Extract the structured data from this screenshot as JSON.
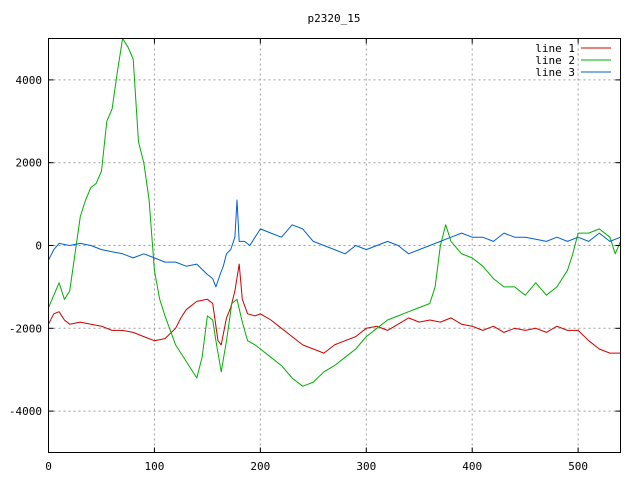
{
  "chart_data": {
    "type": "line",
    "title": "p2320_15",
    "xlabel": "",
    "ylabel": "",
    "xlim": [
      0,
      540
    ],
    "ylim": [
      -5000,
      5000
    ],
    "x_ticks": [
      0,
      100,
      200,
      300,
      400,
      500
    ],
    "y_ticks": [
      -4000,
      -2000,
      0,
      2000,
      4000
    ],
    "grid": true,
    "legend_position": "top-right",
    "series": [
      {
        "name": "line 1",
        "color": "#d00000",
        "points": [
          [
            0,
            -1900
          ],
          [
            5,
            -1650
          ],
          [
            10,
            -1600
          ],
          [
            15,
            -1800
          ],
          [
            20,
            -1900
          ],
          [
            30,
            -1850
          ],
          [
            40,
            -1900
          ],
          [
            50,
            -1950
          ],
          [
            60,
            -2050
          ],
          [
            70,
            -2050
          ],
          [
            80,
            -2100
          ],
          [
            90,
            -2200
          ],
          [
            100,
            -2300
          ],
          [
            110,
            -2250
          ],
          [
            120,
            -2000
          ],
          [
            125,
            -1750
          ],
          [
            130,
            -1550
          ],
          [
            140,
            -1350
          ],
          [
            150,
            -1300
          ],
          [
            155,
            -1400
          ],
          [
            160,
            -2300
          ],
          [
            163,
            -2400
          ],
          [
            168,
            -1750
          ],
          [
            172,
            -1500
          ],
          [
            176,
            -1100
          ],
          [
            180,
            -450
          ],
          [
            183,
            -1300
          ],
          [
            188,
            -1650
          ],
          [
            195,
            -1700
          ],
          [
            200,
            -1650
          ],
          [
            210,
            -1800
          ],
          [
            220,
            -2000
          ],
          [
            230,
            -2200
          ],
          [
            240,
            -2400
          ],
          [
            250,
            -2500
          ],
          [
            260,
            -2600
          ],
          [
            270,
            -2400
          ],
          [
            280,
            -2300
          ],
          [
            290,
            -2200
          ],
          [
            300,
            -2000
          ],
          [
            310,
            -1950
          ],
          [
            320,
            -2050
          ],
          [
            330,
            -1900
          ],
          [
            340,
            -1750
          ],
          [
            350,
            -1850
          ],
          [
            360,
            -1800
          ],
          [
            370,
            -1850
          ],
          [
            380,
            -1750
          ],
          [
            390,
            -1900
          ],
          [
            400,
            -1950
          ],
          [
            410,
            -2050
          ],
          [
            420,
            -1950
          ],
          [
            430,
            -2100
          ],
          [
            440,
            -2000
          ],
          [
            450,
            -2050
          ],
          [
            460,
            -2000
          ],
          [
            470,
            -2100
          ],
          [
            480,
            -1950
          ],
          [
            490,
            -2050
          ],
          [
            500,
            -2050
          ],
          [
            510,
            -2300
          ],
          [
            520,
            -2500
          ],
          [
            530,
            -2600
          ],
          [
            540,
            -2600
          ]
        ]
      },
      {
        "name": "line 2",
        "color": "#00b000",
        "points": [
          [
            0,
            -1500
          ],
          [
            5,
            -1200
          ],
          [
            10,
            -900
          ],
          [
            15,
            -1300
          ],
          [
            20,
            -1100
          ],
          [
            25,
            -200
          ],
          [
            30,
            700
          ],
          [
            35,
            1100
          ],
          [
            40,
            1400
          ],
          [
            45,
            1500
          ],
          [
            50,
            1800
          ],
          [
            55,
            3000
          ],
          [
            60,
            3300
          ],
          [
            65,
            4200
          ],
          [
            70,
            5000
          ],
          [
            75,
            4800
          ],
          [
            80,
            4500
          ],
          [
            85,
            2500
          ],
          [
            90,
            2000
          ],
          [
            95,
            1100
          ],
          [
            100,
            -600
          ],
          [
            105,
            -1300
          ],
          [
            110,
            -1700
          ],
          [
            120,
            -2400
          ],
          [
            130,
            -2800
          ],
          [
            140,
            -3200
          ],
          [
            145,
            -2700
          ],
          [
            150,
            -1700
          ],
          [
            155,
            -1800
          ],
          [
            158,
            -2300
          ],
          [
            163,
            -3050
          ],
          [
            168,
            -2300
          ],
          [
            173,
            -1400
          ],
          [
            178,
            -1300
          ],
          [
            183,
            -1850
          ],
          [
            188,
            -2300
          ],
          [
            195,
            -2400
          ],
          [
            200,
            -2500
          ],
          [
            210,
            -2700
          ],
          [
            220,
            -2900
          ],
          [
            230,
            -3200
          ],
          [
            240,
            -3400
          ],
          [
            250,
            -3300
          ],
          [
            260,
            -3050
          ],
          [
            270,
            -2900
          ],
          [
            280,
            -2700
          ],
          [
            290,
            -2500
          ],
          [
            300,
            -2200
          ],
          [
            310,
            -2000
          ],
          [
            320,
            -1800
          ],
          [
            330,
            -1700
          ],
          [
            340,
            -1600
          ],
          [
            350,
            -1500
          ],
          [
            360,
            -1400
          ],
          [
            365,
            -1000
          ],
          [
            370,
            0
          ],
          [
            375,
            500
          ],
          [
            380,
            100
          ],
          [
            390,
            -200
          ],
          [
            400,
            -300
          ],
          [
            410,
            -500
          ],
          [
            420,
            -800
          ],
          [
            430,
            -1000
          ],
          [
            440,
            -1000
          ],
          [
            450,
            -1200
          ],
          [
            460,
            -900
          ],
          [
            470,
            -1200
          ],
          [
            480,
            -1000
          ],
          [
            490,
            -600
          ],
          [
            495,
            -200
          ],
          [
            500,
            300
          ],
          [
            510,
            300
          ],
          [
            520,
            400
          ],
          [
            530,
            200
          ],
          [
            535,
            -200
          ],
          [
            540,
            100
          ]
        ]
      },
      {
        "name": "line 3",
        "color": "#0060d0",
        "points": [
          [
            0,
            -350
          ],
          [
            5,
            -100
          ],
          [
            10,
            50
          ],
          [
            20,
            0
          ],
          [
            30,
            50
          ],
          [
            40,
            0
          ],
          [
            50,
            -100
          ],
          [
            60,
            -150
          ],
          [
            70,
            -200
          ],
          [
            80,
            -300
          ],
          [
            90,
            -200
          ],
          [
            100,
            -300
          ],
          [
            110,
            -400
          ],
          [
            120,
            -400
          ],
          [
            130,
            -500
          ],
          [
            140,
            -450
          ],
          [
            150,
            -700
          ],
          [
            155,
            -800
          ],
          [
            158,
            -1000
          ],
          [
            162,
            -700
          ],
          [
            165,
            -500
          ],
          [
            168,
            -200
          ],
          [
            172,
            -100
          ],
          [
            176,
            200
          ],
          [
            178,
            1100
          ],
          [
            180,
            100
          ],
          [
            185,
            100
          ],
          [
            190,
            0
          ],
          [
            200,
            400
          ],
          [
            210,
            300
          ],
          [
            220,
            200
          ],
          [
            230,
            500
          ],
          [
            240,
            400
          ],
          [
            250,
            100
          ],
          [
            260,
            0
          ],
          [
            270,
            -100
          ],
          [
            280,
            -200
          ],
          [
            290,
            0
          ],
          [
            300,
            -100
          ],
          [
            310,
            0
          ],
          [
            320,
            100
          ],
          [
            330,
            0
          ],
          [
            340,
            -200
          ],
          [
            350,
            -100
          ],
          [
            360,
            0
          ],
          [
            370,
            100
          ],
          [
            380,
            200
          ],
          [
            390,
            300
          ],
          [
            400,
            200
          ],
          [
            410,
            200
          ],
          [
            420,
            100
          ],
          [
            430,
            300
          ],
          [
            440,
            200
          ],
          [
            450,
            200
          ],
          [
            460,
            150
          ],
          [
            470,
            100
          ],
          [
            480,
            200
          ],
          [
            490,
            100
          ],
          [
            500,
            200
          ],
          [
            510,
            100
          ],
          [
            520,
            300
          ],
          [
            530,
            100
          ],
          [
            540,
            200
          ]
        ]
      }
    ]
  }
}
